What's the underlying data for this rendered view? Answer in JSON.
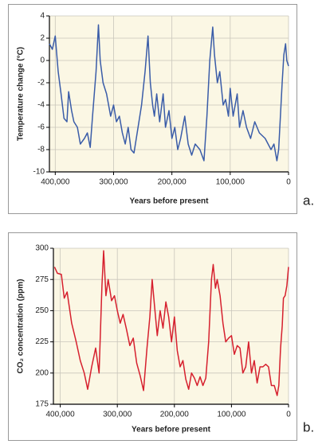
{
  "chart_data": [
    {
      "type": "line",
      "xlabel": "Years before present",
      "ylabel": "Temperature change (°C)",
      "annotation": "a.",
      "xlim": [
        410000,
        0
      ],
      "ylim": [
        -10,
        4
      ],
      "xticks": [
        {
          "value": 400000,
          "label": "400,000"
        },
        {
          "value": 300000,
          "label": "300,000"
        },
        {
          "value": 200000,
          "label": "200,000"
        },
        {
          "value": 100000,
          "label": "100,000"
        },
        0
      ],
      "yticks": [
        -10,
        -8,
        -6,
        -4,
        -2,
        0,
        2,
        4
      ],
      "grid": true,
      "x": [
        410000,
        405000,
        400000,
        395000,
        390000,
        385000,
        380000,
        377000,
        372000,
        368000,
        362000,
        357000,
        350000,
        345000,
        340000,
        336000,
        330000,
        326000,
        323000,
        318000,
        312000,
        305000,
        300000,
        295000,
        290000,
        285000,
        280000,
        275000,
        270000,
        265000,
        258000,
        252000,
        246000,
        241000,
        237000,
        233000,
        230000,
        226000,
        221000,
        215000,
        211000,
        205000,
        200000,
        195000,
        190000,
        185000,
        178000,
        172000,
        166000,
        160000,
        152000,
        145000,
        140000,
        135000,
        130000,
        127000,
        122000,
        118000,
        112000,
        108000,
        103000,
        100000,
        95000,
        88000,
        84000,
        78000,
        72000,
        65000,
        58000,
        50000,
        40000,
        30000,
        25000,
        20000,
        17000,
        14000,
        11000,
        8000,
        5000,
        3000,
        0
      ],
      "series": [
        {
          "color": "#3a5ca8",
          "values": [
            1.5,
            1.0,
            2.2,
            -1,
            -3,
            -5.2,
            -5.5,
            -2.8,
            -4.5,
            -5.5,
            -6,
            -7.5,
            -7,
            -6.5,
            -7.8,
            -5,
            -1,
            3.2,
            0,
            -2,
            -3,
            -5,
            -4,
            -5.5,
            -5,
            -6.5,
            -7.5,
            -6,
            -8,
            -8.3,
            -6,
            -4,
            -1,
            2.2,
            -2,
            -4,
            -5,
            -3,
            -5.5,
            -3,
            -6,
            -4.5,
            -7,
            -6,
            -8,
            -7,
            -5,
            -7.5,
            -8.5,
            -7.5,
            -8,
            -9,
            -5,
            0,
            3,
            0.5,
            -2,
            -1,
            -4,
            -3.5,
            -5,
            -2.5,
            -5,
            -3,
            -6,
            -4.5,
            -6,
            -7,
            -5.5,
            -6.5,
            -7,
            -8,
            -7.5,
            -9,
            -8,
            -5,
            -2,
            0.5,
            1.5,
            0,
            -0.5
          ]
        }
      ]
    },
    {
      "type": "line",
      "xlabel": "Years before present",
      "ylabel": "CO₂ concentration (ppm)",
      "annotation": "b.",
      "xlim": [
        412000,
        0
      ],
      "ylim": [
        175,
        300
      ],
      "xticks": [
        {
          "value": 400000,
          "label": "400,000"
        },
        {
          "value": 300000,
          "label": "300,000"
        },
        {
          "value": 200000,
          "label": "200,000"
        },
        {
          "value": 100000,
          "label": "100,000"
        },
        0
      ],
      "yticks": [
        175,
        200,
        225,
        250,
        275,
        300
      ],
      "grid": true,
      "x": [
        410000,
        405000,
        398000,
        393000,
        388000,
        380000,
        372000,
        365000,
        358000,
        352000,
        345000,
        338000,
        332000,
        327000,
        324000,
        320000,
        316000,
        310000,
        305000,
        300000,
        295000,
        290000,
        284000,
        278000,
        272000,
        266000,
        260000,
        254000,
        248000,
        243000,
        239000,
        235000,
        230000,
        225000,
        220000,
        215000,
        210000,
        205000,
        200000,
        195000,
        190000,
        185000,
        180000,
        175000,
        170000,
        165000,
        160000,
        155000,
        150000,
        145000,
        140000,
        135000,
        132000,
        128000,
        125000,
        120000,
        115000,
        110000,
        105000,
        100000,
        95000,
        90000,
        85000,
        80000,
        75000,
        70000,
        65000,
        60000,
        55000,
        50000,
        45000,
        40000,
        35000,
        30000,
        25000,
        20000,
        17000,
        14000,
        11000,
        9000,
        6000,
        3000,
        0
      ],
      "series": [
        {
          "color": "#d6202e",
          "values": [
            285,
            280,
            279,
            260,
            265,
            240,
            225,
            210,
            200,
            187,
            205,
            220,
            200,
            270,
            298,
            262,
            275,
            258,
            262,
            250,
            240,
            247,
            235,
            222,
            228,
            208,
            198,
            186,
            220,
            245,
            275,
            255,
            230,
            250,
            236,
            257,
            245,
            225,
            245,
            218,
            205,
            210,
            195,
            187,
            200,
            196,
            190,
            197,
            190,
            196,
            225,
            275,
            287,
            268,
            275,
            262,
            240,
            225,
            228,
            230,
            215,
            222,
            220,
            200,
            205,
            225,
            200,
            210,
            192,
            205,
            205,
            207,
            205,
            190,
            190,
            182,
            190,
            220,
            238,
            260,
            262,
            270,
            285
          ]
        }
      ]
    }
  ]
}
